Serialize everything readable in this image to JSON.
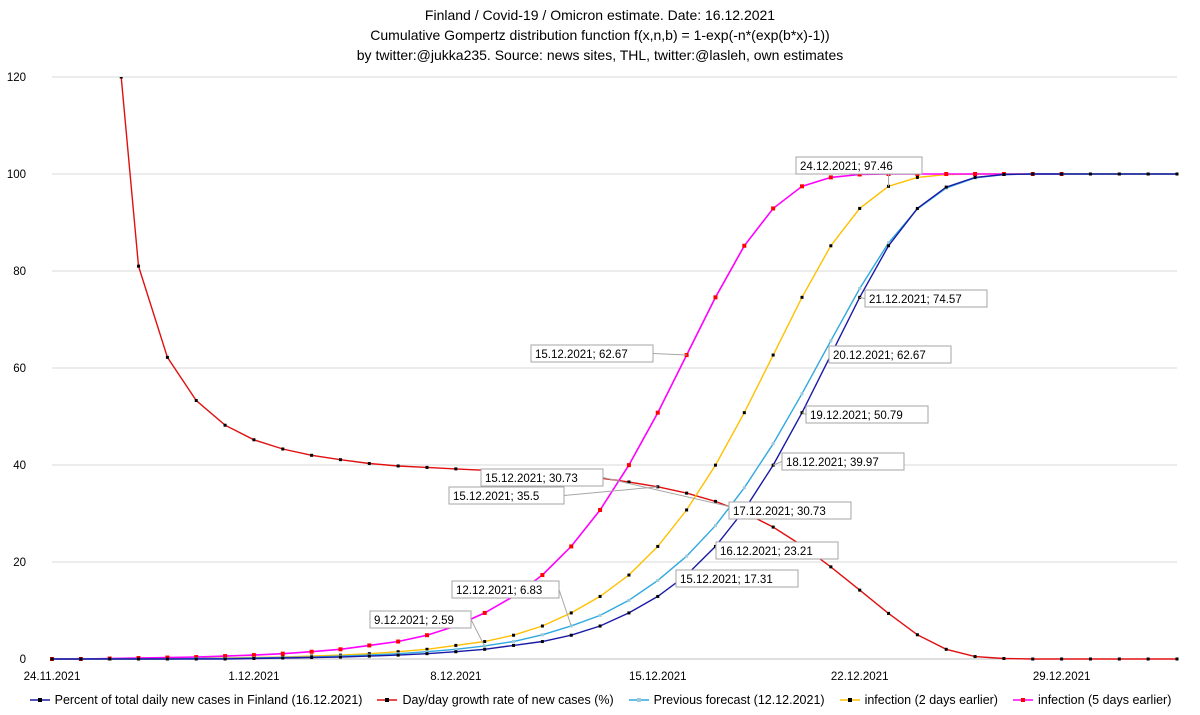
{
  "title_lines": [
    "Finland / Covid-19 / Omicron estimate.   Date: 16.12.2021",
    "Cumulative Gompertz distribution  function   f(x,n,b) = 1-exp(-n*(exp(b*x)-1))",
    "by twitter:@jukka235. Source: news sites, THL, twitter:@lasleh, own estimates"
  ],
  "chart_data": {
    "type": "line",
    "title": "Finland / Covid-19 / Omicron estimate. Date: 16.12.2021",
    "xlabel": "",
    "ylabel": "",
    "xlim": [
      0,
      39
    ],
    "ylim": [
      0,
      120
    ],
    "y_ticks": [
      0,
      20,
      40,
      60,
      80,
      100,
      120
    ],
    "x_tick_positions": [
      0,
      7,
      14,
      21,
      28,
      35
    ],
    "x_tick_labels": [
      "24.11.2021",
      "1.12.2021",
      "8.12.2021",
      "15.12.2021",
      "22.12.2021",
      "29.12.2021"
    ],
    "grid": "horizontal",
    "legend_position": "bottom",
    "series": [
      {
        "name": "Percent of total daily new cases in Finland (16.12.2021)",
        "color": "#1a1aa6",
        "marker_color": "#000000",
        "x": [
          0,
          1,
          2,
          3,
          4,
          5,
          6,
          7,
          8,
          9,
          10,
          11,
          12,
          13,
          14,
          15,
          16,
          17,
          18,
          19,
          20,
          21,
          22,
          23,
          24,
          25,
          26,
          27,
          28,
          29,
          30,
          31,
          32,
          33,
          34,
          35,
          36,
          37,
          38,
          39
        ],
        "values": [
          0,
          0,
          0,
          0,
          0,
          0,
          0,
          0.1,
          0.2,
          0.3,
          0.4,
          0.6,
          0.8,
          1.1,
          1.5,
          2.0,
          2.8,
          3.6,
          4.9,
          6.8,
          9.5,
          12.9,
          17.31,
          23.21,
          30.73,
          39.97,
          50.79,
          62.67,
          74.57,
          85.2,
          92.9,
          97.3,
          99.3,
          99.9,
          100,
          100,
          100,
          100,
          100,
          100
        ]
      },
      {
        "name": "Day/day growth rate of new cases (%)",
        "color": "#e01010",
        "marker_color": "#000000",
        "x": [
          2.4,
          3,
          4,
          5,
          6,
          7,
          8,
          9,
          10,
          11,
          12,
          13,
          14,
          15,
          16,
          17,
          18,
          19,
          20,
          21,
          22,
          23,
          24,
          25,
          26,
          27,
          28,
          29,
          30,
          31,
          32,
          33,
          34,
          35,
          36,
          37,
          38,
          39
        ],
        "values": [
          120,
          81,
          62.2,
          53.3,
          48.2,
          45.2,
          43.3,
          42.0,
          41.1,
          40.3,
          39.8,
          39.5,
          39.2,
          38.9,
          38.6,
          38.3,
          37.9,
          37.3,
          36.5,
          35.5,
          34.2,
          32.5,
          30.2,
          27.2,
          23.4,
          19.0,
          14.2,
          9.4,
          5.0,
          2.0,
          0.5,
          0.1,
          0,
          0,
          0,
          0,
          0,
          0
        ]
      },
      {
        "name": "Previous forecast (12.12.2021)",
        "color": "#2fa9df",
        "marker_color": "#9ec9d9",
        "x": [
          0,
          1,
          2,
          3,
          4,
          5,
          6,
          7,
          8,
          9,
          10,
          11,
          12,
          13,
          14,
          15,
          16,
          17,
          18,
          19,
          20,
          21,
          22,
          23,
          24,
          25,
          26,
          27,
          28,
          29,
          30,
          31,
          32,
          33,
          34,
          35,
          36,
          37,
          38,
          39
        ],
        "values": [
          0,
          0,
          0,
          0,
          0,
          0.1,
          0.1,
          0.2,
          0.3,
          0.4,
          0.6,
          0.8,
          1.1,
          1.5,
          2.0,
          2.7,
          3.6,
          5.0,
          6.83,
          9.0,
          12.1,
          16.2,
          21.2,
          27.5,
          35.3,
          44.4,
          54.7,
          65.6,
          76.4,
          85.8,
          92.8,
          97.1,
          99.2,
          99.9,
          100,
          100,
          100,
          100,
          100,
          100
        ]
      },
      {
        "name": "infection (2 days earlier)",
        "color": "#ffc000",
        "marker_color": "#000000",
        "x": [
          0,
          1,
          2,
          3,
          4,
          5,
          6,
          7,
          8,
          9,
          10,
          11,
          12,
          13,
          14,
          15,
          16,
          17,
          18,
          19,
          20,
          21,
          22,
          23,
          24,
          25,
          26,
          27,
          28,
          29,
          30,
          31,
          32,
          33,
          34,
          35,
          36,
          37,
          38,
          39
        ],
        "values": [
          0,
          0,
          0,
          0,
          0,
          0.1,
          0.2,
          0.3,
          0.4,
          0.6,
          0.8,
          1.1,
          1.5,
          2.0,
          2.8,
          3.6,
          4.9,
          6.8,
          9.5,
          12.9,
          17.31,
          23.21,
          30.73,
          39.97,
          50.79,
          62.67,
          74.57,
          85.2,
          92.9,
          97.46,
          99.3,
          99.9,
          100,
          100,
          100,
          100,
          100,
          100,
          100,
          100
        ]
      },
      {
        "name": "infection (5 days earlier)",
        "color": "#ff00ff",
        "marker_color": "#ff0000",
        "x": [
          0,
          1,
          2,
          3,
          4,
          5,
          6,
          7,
          8,
          9,
          10,
          11,
          12,
          13,
          14,
          15,
          16,
          17,
          18,
          19,
          20,
          21,
          22,
          23,
          24,
          25,
          26,
          27,
          28,
          29,
          30,
          31,
          32,
          33,
          34,
          35
        ],
        "values": [
          0,
          0,
          0.1,
          0.2,
          0.3,
          0.4,
          0.6,
          0.8,
          1.1,
          1.5,
          2.0,
          2.8,
          3.6,
          4.9,
          6.8,
          9.5,
          12.9,
          17.31,
          23.21,
          30.73,
          39.97,
          50.79,
          62.67,
          74.57,
          85.2,
          92.9,
          97.46,
          99.3,
          99.9,
          100,
          100,
          100,
          100,
          100,
          100,
          100
        ]
      }
    ],
    "annotations": [
      {
        "text": "24.12.2021; 97.46",
        "x": 29,
        "y": 97.46
      },
      {
        "text": "21.12.2021; 74.57",
        "x": 28,
        "y": 74.57
      },
      {
        "text": "20.12.2021; 62.67",
        "x": 27,
        "y": 62.67
      },
      {
        "text": "19.12.2021; 50.79",
        "x": 26,
        "y": 50.79
      },
      {
        "text": "18.12.2021; 39.97",
        "x": 25,
        "y": 39.97
      },
      {
        "text": "17.12.2021; 30.73",
        "x": 24,
        "y": 30.73
      },
      {
        "text": "16.12.2021; 23.21",
        "x": 23,
        "y": 23.21
      },
      {
        "text": "15.12.2021; 17.31",
        "x": 22,
        "y": 17.31
      },
      {
        "text": "15.12.2021; 62.67",
        "x": 22,
        "y": 62.67
      },
      {
        "text": "15.12.2021; 30.73",
        "x": 24,
        "y": 30.73
      },
      {
        "text": "15.12.2021; 35.5",
        "x": 21,
        "y": 35.5
      },
      {
        "text": "12.12.2021; 6.83",
        "x": 18,
        "y": 6.83
      },
      {
        "text": "9.12.2021; 2.59",
        "x": 15,
        "y": 2.59
      }
    ]
  }
}
